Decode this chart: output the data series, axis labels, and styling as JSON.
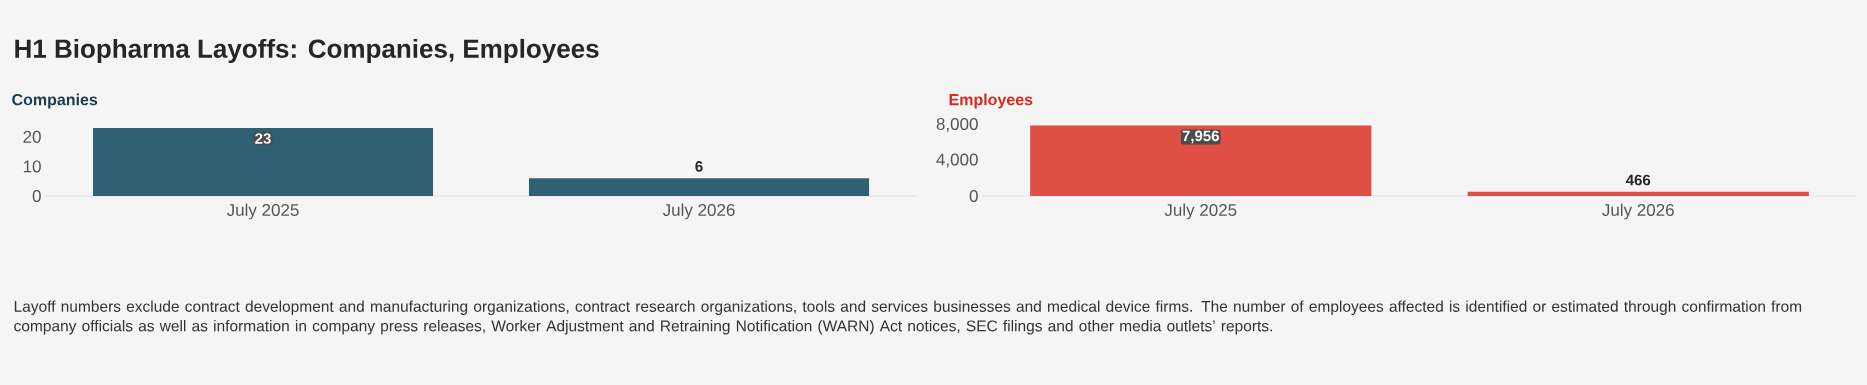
{
  "chart_data": [
    {
      "type": "bar",
      "title": "H1 Biopharma Layoffs: Companies, Employees",
      "subtitle": "Companies",
      "categories": [
        "July 2025",
        "July 2026"
      ],
      "values": [
        23,
        6
      ],
      "value_labels": [
        "23",
        "6"
      ],
      "color": "#2f6073",
      "ylim": [
        0,
        23
      ],
      "yticks": [
        0,
        10,
        20
      ],
      "annotations": [
        "Layoff numbers exclude contract development and manufacturing organizations, contract research organizations, tools and services businesses and medical device firms. The number of employees affected is identified or estimated through confirmation from company officials as well as information in company press releases, Worker Adjustment and Retraining Notification (WARN) Act notices, SEC filings and other media outlets’ reports."
      ]
    },
    {
      "type": "bar",
      "subtitle": "Employees",
      "categories": [
        "July 2025",
        "July 2026"
      ],
      "values": [
        7956,
        466
      ],
      "value_labels": [
        "7,956",
        "466"
      ],
      "color": "#e04f45",
      "ylim": [
        0,
        8000
      ],
      "yticks": [
        0,
        {
          "value": 4000,
          "label": "4,000"
        },
        {
          "value": 8000,
          "label": "8,000"
        }
      ]
    }
  ]
}
